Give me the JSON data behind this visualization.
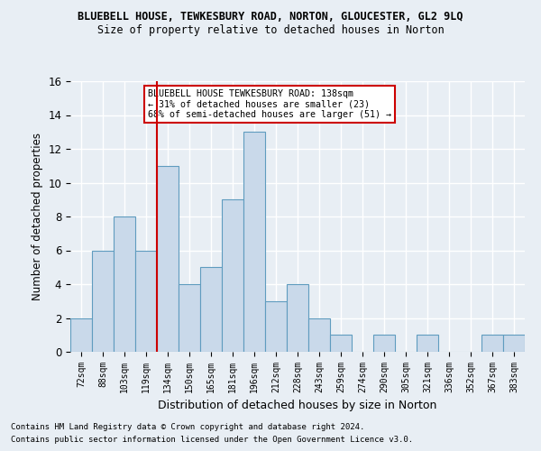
{
  "title1": "BLUEBELL HOUSE, TEWKESBURY ROAD, NORTON, GLOUCESTER, GL2 9LQ",
  "title2": "Size of property relative to detached houses in Norton",
  "xlabel": "Distribution of detached houses by size in Norton",
  "ylabel": "Number of detached properties",
  "bar_labels": [
    "72sqm",
    "88sqm",
    "103sqm",
    "119sqm",
    "134sqm",
    "150sqm",
    "165sqm",
    "181sqm",
    "196sqm",
    "212sqm",
    "228sqm",
    "243sqm",
    "259sqm",
    "274sqm",
    "290sqm",
    "305sqm",
    "321sqm",
    "336sqm",
    "352sqm",
    "367sqm",
    "383sqm"
  ],
  "bar_heights": [
    2,
    6,
    8,
    6,
    11,
    4,
    5,
    9,
    13,
    3,
    4,
    2,
    1,
    0,
    1,
    0,
    1,
    0,
    0,
    1,
    1
  ],
  "bar_color": "#c9d9ea",
  "bar_edgecolor": "#5f9cbf",
  "vline_color": "#cc0000",
  "vline_x": 3.5,
  "annotation_text": "BLUEBELL HOUSE TEWKESBURY ROAD: 138sqm\n← 31% of detached houses are smaller (23)\n68% of semi-detached houses are larger (51) →",
  "annotation_box_color": "#ffffff",
  "annotation_box_edgecolor": "#cc0000",
  "ylim": [
    0,
    16
  ],
  "yticks": [
    0,
    2,
    4,
    6,
    8,
    10,
    12,
    14,
    16
  ],
  "footnote1": "Contains HM Land Registry data © Crown copyright and database right 2024.",
  "footnote2": "Contains public sector information licensed under the Open Government Licence v3.0.",
  "background_color": "#e8eef4",
  "grid_color": "#ffffff"
}
